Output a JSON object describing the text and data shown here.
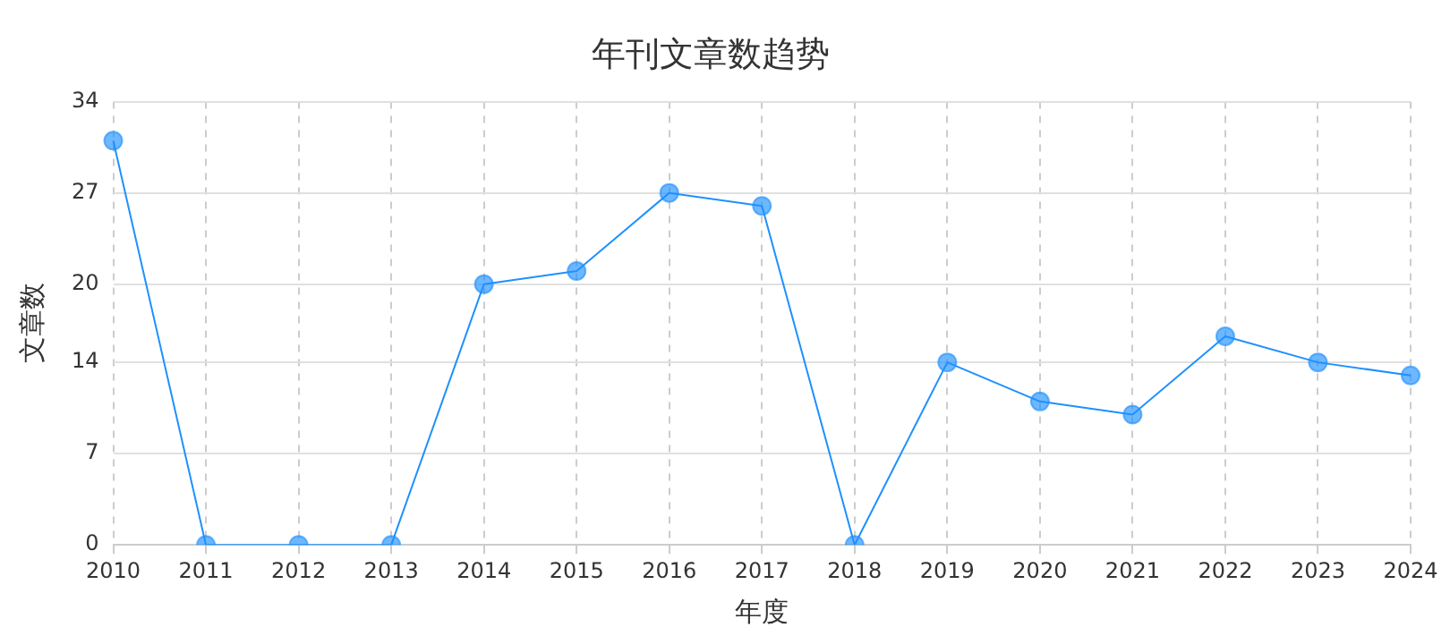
{
  "chart_data": {
    "type": "line",
    "title": "年刊文章数趋势",
    "xlabel": "年度",
    "ylabel": "文章数",
    "categories": [
      "2010",
      "2011",
      "2012",
      "2013",
      "2014",
      "2015",
      "2016",
      "2017",
      "2018",
      "2019",
      "2020",
      "2021",
      "2022",
      "2023",
      "2024"
    ],
    "series": [
      {
        "color": "#1e90ff",
        "values": [
          31,
          0,
          0,
          0,
          20,
          21,
          27,
          26,
          0,
          14,
          11,
          10,
          16,
          14,
          13
        ]
      }
    ],
    "ylim": [
      0,
      34
    ],
    "yticks": [
      0,
      7,
      14,
      20,
      27,
      34
    ],
    "grid": true,
    "legend": false,
    "marker": "circle",
    "line_style": "solid"
  }
}
